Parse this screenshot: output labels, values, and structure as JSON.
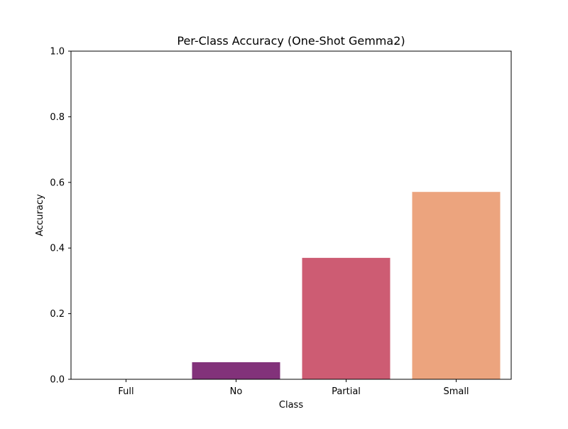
{
  "chart_data": {
    "type": "bar",
    "title": "Per-Class Accuracy (One-Shot Gemma2)",
    "xlabel": "Class",
    "ylabel": "Accuracy",
    "categories": [
      "Full",
      "No",
      "Partial",
      "Small"
    ],
    "values": [
      0.0,
      0.052,
      0.37,
      0.571
    ],
    "colors": [
      "#3b0f70",
      "#82327a",
      "#cd5c73",
      "#eca47e"
    ],
    "ylim": [
      0,
      1.0
    ],
    "yticks": [
      0.0,
      0.2,
      0.4,
      0.6,
      0.8,
      1.0
    ],
    "ytick_labels": [
      "0.0",
      "0.2",
      "0.4",
      "0.6",
      "0.8",
      "1.0"
    ],
    "grid": false,
    "legend": "none"
  }
}
